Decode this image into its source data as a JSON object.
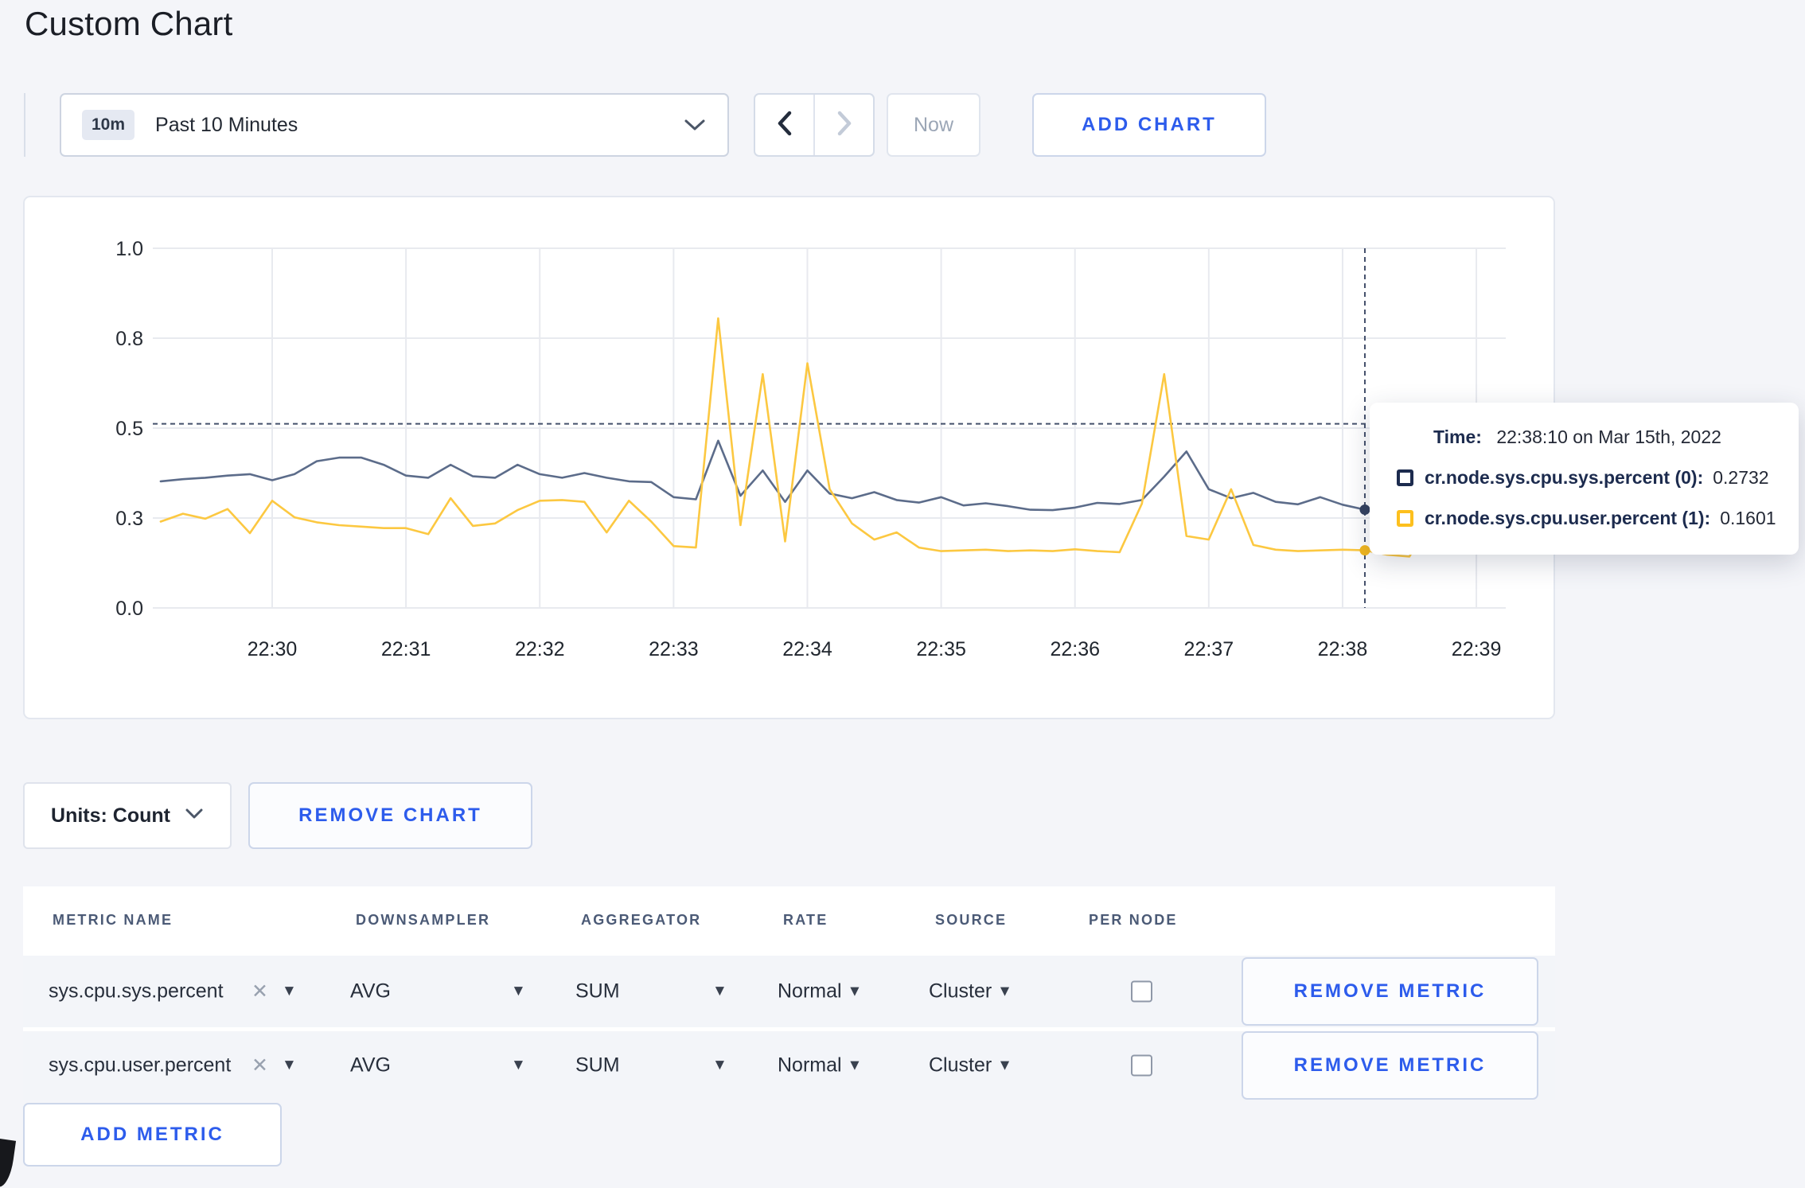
{
  "page": {
    "title": "Custom Chart",
    "accent_blue": "#2d5cec",
    "background": "#f4f5f9"
  },
  "toolbar": {
    "time_window_badge": "10m",
    "time_window_label": "Past 10 Minutes",
    "prev_icon": "chevron-left",
    "next_icon": "chevron-right",
    "now_label": "Now",
    "add_chart_label": "ADD CHART"
  },
  "chart_controls": {
    "units_label": "Units: Count",
    "remove_chart_label": "REMOVE CHART",
    "add_metric_label": "ADD METRIC"
  },
  "tooltip": {
    "time_label": "Time:",
    "time_value": "22:38:10 on Mar 15th, 2022",
    "series": [
      {
        "name": "cr.node.sys.cpu.sys.percent (0):",
        "value": "0.2732",
        "color": "#1c2b4e"
      },
      {
        "name": "cr.node.sys.cpu.user.percent (1):",
        "value": "0.1601",
        "color": "#fdc01e"
      }
    ]
  },
  "metrics_table": {
    "headers": [
      "METRIC NAME",
      "DOWNSAMPLER",
      "AGGREGATOR",
      "RATE",
      "SOURCE",
      "PER NODE"
    ],
    "rows": [
      {
        "metric": "sys.cpu.sys.percent",
        "clear": "✕",
        "downsampler": "AVG",
        "aggregator": "SUM",
        "rate": "Normal",
        "source": "Cluster",
        "per_node_checked": false,
        "remove_label": "REMOVE METRIC"
      },
      {
        "metric": "sys.cpu.user.percent",
        "clear": "✕",
        "downsampler": "AVG",
        "aggregator": "SUM",
        "rate": "Normal",
        "source": "Cluster",
        "per_node_checked": false,
        "remove_label": "REMOVE METRIC"
      }
    ]
  },
  "chart_data": {
    "type": "line",
    "title": "",
    "xlabel": "",
    "ylabel": "",
    "x_start": "22:29:10",
    "x_end": "22:39:00",
    "interval_seconds": 10,
    "x_ticks": [
      "22:30",
      "22:31",
      "22:32",
      "22:33",
      "22:34",
      "22:35",
      "22:36",
      "22:37",
      "22:38",
      "22:39"
    ],
    "y_tick_labels": [
      "0.0",
      "0.3",
      "0.5",
      "0.8",
      "1.0"
    ],
    "y_tick_values": [
      0,
      0.25,
      0.5,
      0.75,
      1.0
    ],
    "ylim": [
      0,
      1
    ],
    "grid": true,
    "legend_position": "tooltip-overlay",
    "series": [
      {
        "name": "cr.node.sys.cpu.sys.percent",
        "color": "#5c6c8a",
        "dot_color": "#33415f",
        "values": [
          0.352,
          0.358,
          0.362,
          0.368,
          0.372,
          0.355,
          0.372,
          0.408,
          0.418,
          0.418,
          0.398,
          0.368,
          0.362,
          0.398,
          0.366,
          0.362,
          0.398,
          0.372,
          0.362,
          0.375,
          0.362,
          0.352,
          0.35,
          0.308,
          0.302,
          0.465,
          0.312,
          0.382,
          0.295,
          0.382,
          0.318,
          0.305,
          0.322,
          0.3,
          0.293,
          0.308,
          0.285,
          0.291,
          0.283,
          0.273,
          0.272,
          0.279,
          0.292,
          0.289,
          0.3,
          0.365,
          0.435,
          0.33,
          0.305,
          0.32,
          0.295,
          0.288,
          0.308,
          0.287,
          0.2732,
          0.268,
          0.272,
          0.27,
          0.275,
          0.27
        ]
      },
      {
        "name": "cr.node.sys.cpu.user.percent",
        "color": "#fcc841",
        "dot_color": "#f2b71e",
        "values": [
          0.24,
          0.262,
          0.248,
          0.275,
          0.208,
          0.298,
          0.252,
          0.238,
          0.23,
          0.226,
          0.222,
          0.222,
          0.205,
          0.305,
          0.228,
          0.235,
          0.272,
          0.298,
          0.3,
          0.295,
          0.21,
          0.298,
          0.24,
          0.172,
          0.168,
          0.805,
          0.23,
          0.65,
          0.185,
          0.68,
          0.33,
          0.235,
          0.19,
          0.21,
          0.168,
          0.158,
          0.16,
          0.162,
          0.158,
          0.16,
          0.158,
          0.163,
          0.158,
          0.155,
          0.29,
          0.65,
          0.2,
          0.19,
          0.33,
          0.175,
          0.162,
          0.158,
          0.16,
          0.162,
          0.1601,
          0.148,
          0.143,
          0.25,
          0.3,
          0.235
        ]
      }
    ],
    "crosshair": {
      "time": "22:38:10",
      "index": 54,
      "hover_value": 0.512
    }
  }
}
